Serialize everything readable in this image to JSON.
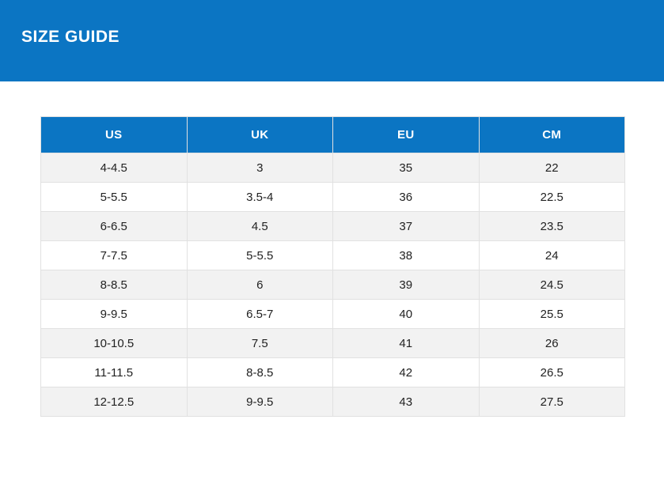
{
  "page": {
    "title": "SIZE GUIDE"
  },
  "colors": {
    "primary_blue": "#0b75c3",
    "row_alt_gray": "#f2f2f2",
    "row_white": "#ffffff",
    "border": "#e1e1e1",
    "header_text": "#ffffff",
    "cell_text": "#222222"
  },
  "size_table": {
    "columns": [
      "US",
      "UK",
      "EU",
      "CM"
    ],
    "rows": [
      [
        "4-4.5",
        "3",
        "35",
        "22"
      ],
      [
        "5-5.5",
        "3.5-4",
        "36",
        "22.5"
      ],
      [
        "6-6.5",
        "4.5",
        "37",
        "23.5"
      ],
      [
        "7-7.5",
        "5-5.5",
        "38",
        "24"
      ],
      [
        "8-8.5",
        "6",
        "39",
        "24.5"
      ],
      [
        "9-9.5",
        "6.5-7",
        "40",
        "25.5"
      ],
      [
        "10-10.5",
        "7.5",
        "41",
        "26"
      ],
      [
        "11-11.5",
        "8-8.5",
        "42",
        "26.5"
      ],
      [
        "12-12.5",
        "9-9.5",
        "43",
        "27.5"
      ]
    ]
  }
}
